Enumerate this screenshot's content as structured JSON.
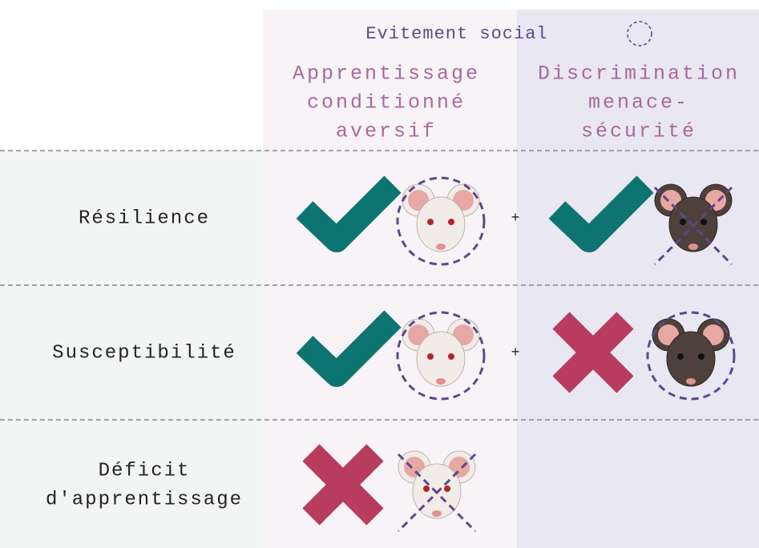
{
  "legend": {
    "label": "Evitement social"
  },
  "columns": [
    {
      "lines": [
        "Apprentissage",
        "conditionné",
        "aversif"
      ]
    },
    {
      "lines": [
        "Discrimination",
        "menace-",
        "sécurité"
      ]
    }
  ],
  "rows": [
    {
      "lines": [
        "Résilience"
      ],
      "connector": "+"
    },
    {
      "lines": [
        "Susceptibilité"
      ],
      "connector": "+"
    },
    {
      "lines": [
        "Déficit",
        "d'apprentissage"
      ]
    }
  ]
}
